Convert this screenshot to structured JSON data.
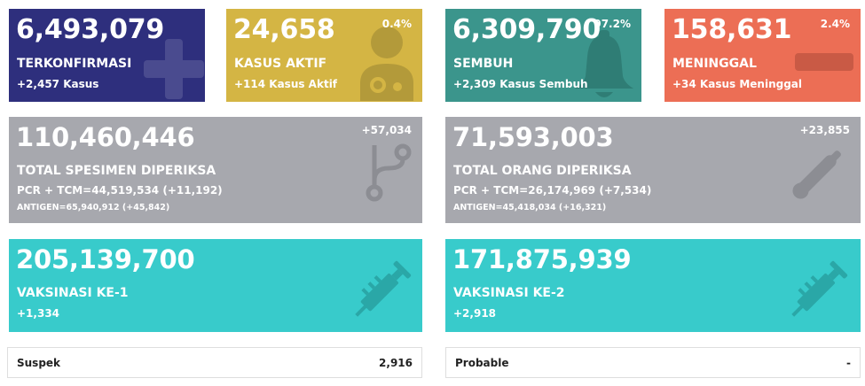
{
  "confirmed": {
    "value": "6,493,079",
    "label": "TERKONFIRMASI",
    "delta": "+2,457 Kasus",
    "color": "#2e2f7d"
  },
  "active": {
    "value": "24,658",
    "label": "KASUS AKTIF",
    "delta": "+114 Kasus Aktif",
    "percent": "0.4%",
    "color": "#d4b544"
  },
  "recovered": {
    "value": "6,309,790",
    "label": "SEMBUH",
    "delta": "+2,309 Kasus Sembuh",
    "percent": "97.2%",
    "color": "#3b958c"
  },
  "deaths": {
    "value": "158,631",
    "label": "MENINGGAL",
    "delta": "+34 Kasus Meninggal",
    "percent": "2.4%",
    "color": "#ec6e55"
  },
  "specimens": {
    "value": "110,460,446",
    "label": "TOTAL SPESIMEN DIPERIKSA",
    "pcr": "PCR + TCM=44,519,534 (+11,192)",
    "antigen": "ANTIGEN=65,940,912 (+45,842)",
    "delta": "+57,034"
  },
  "people": {
    "value": "71,593,003",
    "label": "TOTAL ORANG DIPERIKSA",
    "pcr": "PCR + TCM=26,174,969 (+7,534)",
    "antigen": "ANTIGEN=45,418,034 (+16,321)",
    "delta": "+23,855"
  },
  "vaccine1": {
    "value": "205,139,700",
    "label": "VAKSINASI KE-1",
    "delta": "+1,334"
  },
  "vaccine2": {
    "value": "171,875,939",
    "label": "VAKSINASI KE-2",
    "delta": "+2,918"
  },
  "suspect": {
    "label": "Suspek",
    "value": "2,916"
  },
  "probable": {
    "label": "Probable",
    "value": "-"
  },
  "icons": [
    "plus-icon",
    "doctor-icon",
    "bell-icon",
    "minus-icon",
    "branch-icon",
    "thermometer-icon",
    "syringe-icon"
  ]
}
